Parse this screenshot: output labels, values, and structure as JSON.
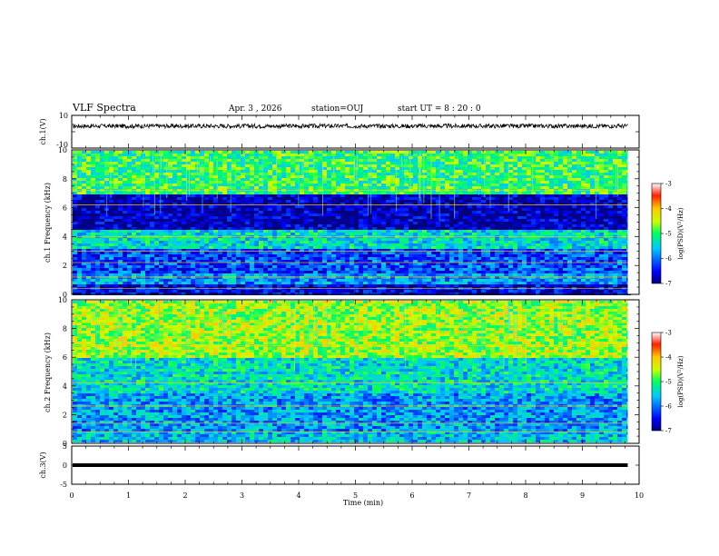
{
  "header": {
    "title": "VLF Spectra",
    "date": "Apr. 3 , 2026",
    "station": "station=OUJ",
    "start_ut": "start UT =  8 : 20 : 0"
  },
  "chart_data": [
    {
      "type": "line",
      "panel": "ch1-waveform",
      "ylabel": "ch.1(V)",
      "ylim": [
        -10,
        10
      ],
      "yticks": [
        "10",
        "-10"
      ],
      "xlim": [
        0,
        10
      ],
      "baseline": 3.5,
      "data_end_min": 9.8,
      "color": "#000000"
    },
    {
      "type": "heatmap",
      "panel": "ch1-spectrogram",
      "ylabel": "ch.1 Frequency (kHz)",
      "ylim": [
        0,
        10
      ],
      "yticks": [
        "0",
        "2",
        "4",
        "6",
        "8",
        "10"
      ],
      "xlim": [
        0,
        10
      ],
      "data_end_min": 9.8,
      "colorbar": {
        "label": "log(PSD)(V²/Hz)",
        "range": [
          -7,
          -3
        ],
        "ticks": [
          "-3",
          "-4",
          "-5",
          "-6",
          "-7"
        ]
      },
      "bands": [
        {
          "f0": 0,
          "f1": 0.8,
          "v": -6.6
        },
        {
          "f0": 0.8,
          "f1": 1.6,
          "v": -5.8
        },
        {
          "f0": 1.6,
          "f1": 3.2,
          "v": -6.2
        },
        {
          "f0": 3.2,
          "f1": 4.6,
          "v": -5.4
        },
        {
          "f0": 4.6,
          "f1": 7.0,
          "v": -6.8
        },
        {
          "f0": 7.0,
          "f1": 10,
          "v": -5.0
        }
      ],
      "lines_khz": [
        0.4,
        1.2,
        2.2,
        3.0,
        4.0,
        6.2,
        7.2
      ]
    },
    {
      "type": "heatmap",
      "panel": "ch2-spectrogram",
      "ylabel": "ch.2 Frequency (kHz)",
      "ylim": [
        0,
        10
      ],
      "yticks": [
        "0",
        "2",
        "4",
        "6",
        "8",
        "10"
      ],
      "xlim": [
        0,
        10
      ],
      "data_end_min": 9.8,
      "colorbar": {
        "label": "log(PSD)(V²/Hz)",
        "range": [
          -7,
          -3
        ],
        "ticks": [
          "-3",
          "-4",
          "-5",
          "-6",
          "-7"
        ]
      },
      "bands": [
        {
          "f0": 0,
          "f1": 1.0,
          "v": -5.6
        },
        {
          "f0": 1.0,
          "f1": 3.6,
          "v": -5.8
        },
        {
          "f0": 3.6,
          "f1": 6.0,
          "v": -5.4
        },
        {
          "f0": 6.0,
          "f1": 10,
          "v": -4.6
        }
      ],
      "lines_khz": [
        0.8,
        1.4,
        2.6,
        4.2,
        6.8,
        8.4
      ]
    },
    {
      "type": "line",
      "panel": "ch3-waveform",
      "ylabel": "ch.3(V)",
      "ylim": [
        -5,
        5
      ],
      "yticks": [
        "5",
        "0",
        "-5"
      ],
      "xlim": [
        0,
        10
      ],
      "baseline": 0,
      "data_end_min": 9.8,
      "color": "#000000"
    }
  ],
  "xaxis": {
    "label": "Time (min)",
    "ticks": [
      "0",
      "1",
      "2",
      "3",
      "4",
      "5",
      "6",
      "7",
      "8",
      "9",
      "10"
    ]
  }
}
